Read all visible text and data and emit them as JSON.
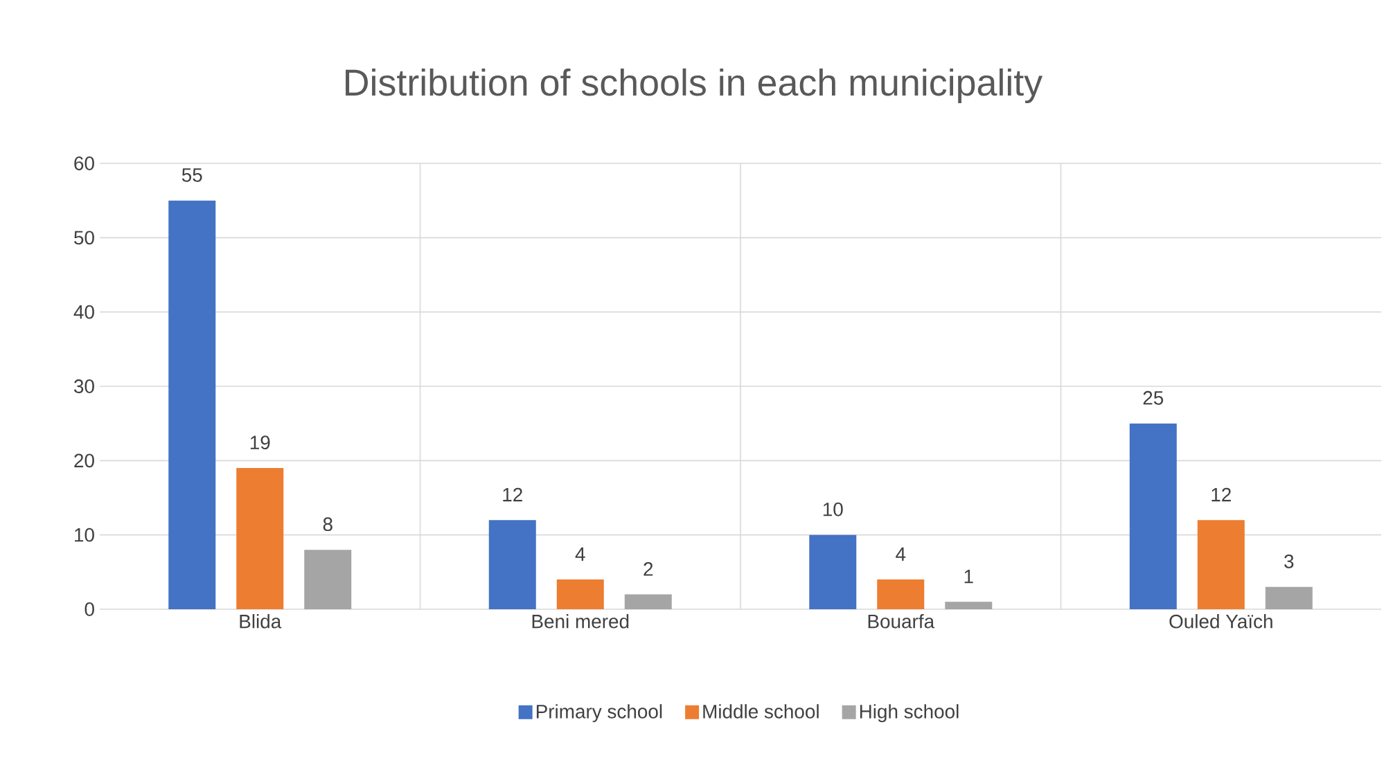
{
  "chart_data": {
    "type": "bar",
    "title": "Distribution of schools in each municipality",
    "categories": [
      "Blida",
      "Beni mered",
      "Bouarfa",
      "Ouled Yaïch"
    ],
    "series": [
      {
        "name": "Primary school",
        "color": "#4472c4",
        "values": [
          55,
          12,
          10,
          25
        ]
      },
      {
        "name": "Middle school",
        "color": "#ed7d31",
        "values": [
          19,
          4,
          4,
          12
        ]
      },
      {
        "name": "High school",
        "color": "#a5a5a5",
        "values": [
          8,
          2,
          1,
          3
        ]
      }
    ],
    "ylim": [
      0,
      60
    ],
    "yticks": [
      0,
      10,
      20,
      30,
      40,
      50,
      60
    ],
    "grid": true,
    "legend": "bottom",
    "data_labels": true
  }
}
